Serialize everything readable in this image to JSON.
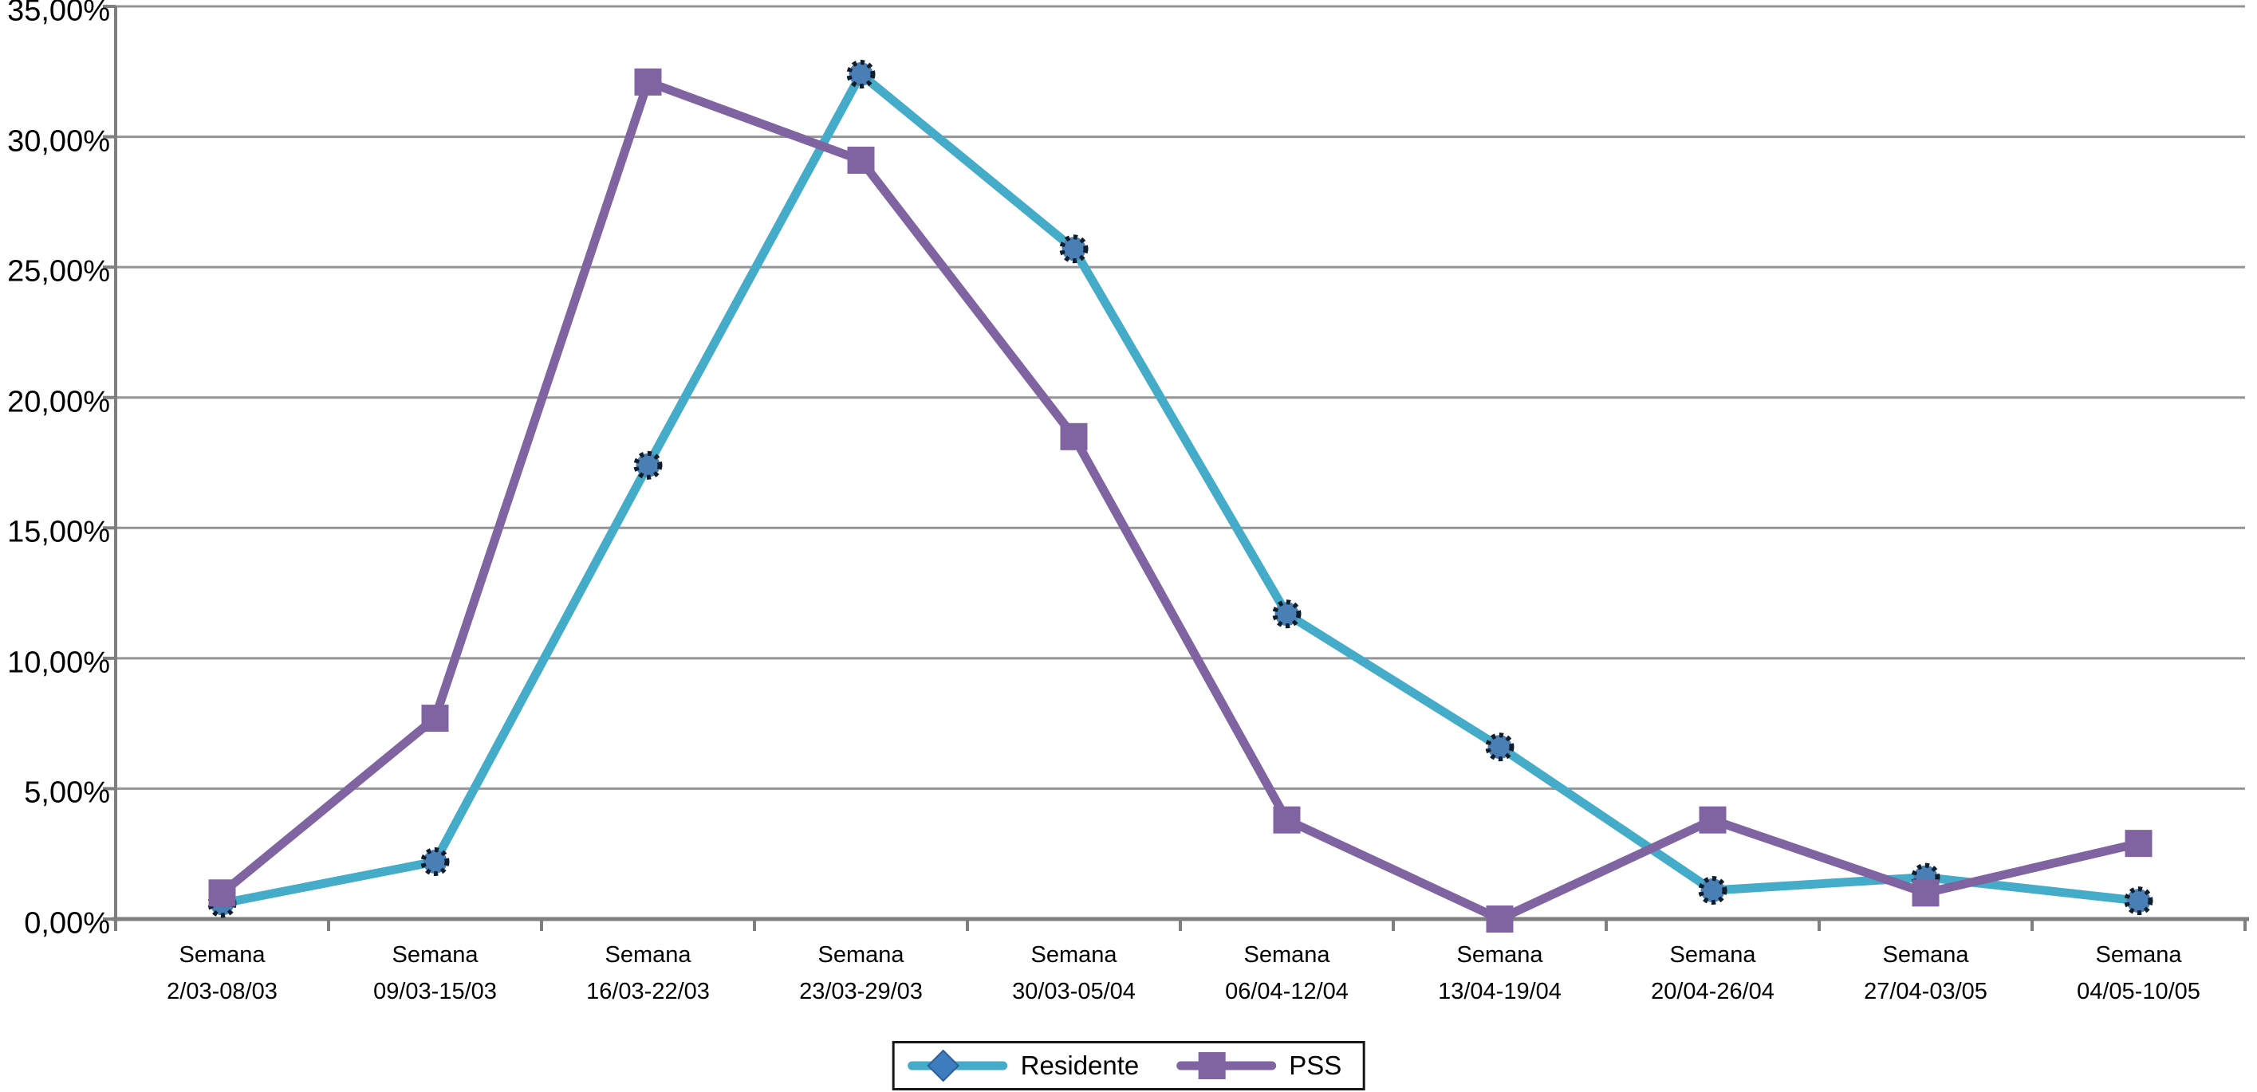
{
  "chart_data": {
    "type": "line",
    "title": "",
    "xlabel": "",
    "ylabel": "",
    "category_prefix": "Semana",
    "categories": [
      "2/03-08/03",
      "09/03-15/03",
      "16/03-22/03",
      "23/03-29/03",
      "30/03-05/04",
      "06/04-12/04",
      "13/04-19/04",
      "20/04-26/04",
      "27/04-03/05",
      "04/05-10/05"
    ],
    "series": [
      {
        "name": "Residente",
        "values": [
          0.6,
          2.2,
          17.4,
          32.4,
          25.7,
          11.7,
          6.6,
          1.1,
          1.6,
          0.7
        ],
        "color": "#44ACC8",
        "marker": "circle",
        "marker_fill": "#4A7FB5",
        "marker_edge": "#101E2B",
        "legend_marker": "diamond",
        "legend_marker_fill": "#3E7CC0"
      },
      {
        "name": "PSS",
        "values": [
          1.0,
          7.7,
          32.1,
          29.1,
          18.5,
          3.8,
          0.0,
          3.8,
          1.0,
          2.9
        ],
        "color": "#8064A2",
        "marker": "square",
        "marker_fill": "#8064A2",
        "marker_edge": "#8064A2",
        "legend_marker": "square",
        "legend_marker_fill": "#8064A2"
      }
    ],
    "ylim": [
      0,
      35
    ],
    "ytick_step": 5,
    "ytick_labels": [
      "0,00%",
      "5,00%",
      "10,00%",
      "15,00%",
      "20,00%",
      "25,00%",
      "30,00%",
      "35,00%"
    ],
    "grid": "horizontal-on",
    "grid_color": "#949494",
    "axis_color": "#7F7F7F",
    "legend_position": "bottom-center"
  }
}
